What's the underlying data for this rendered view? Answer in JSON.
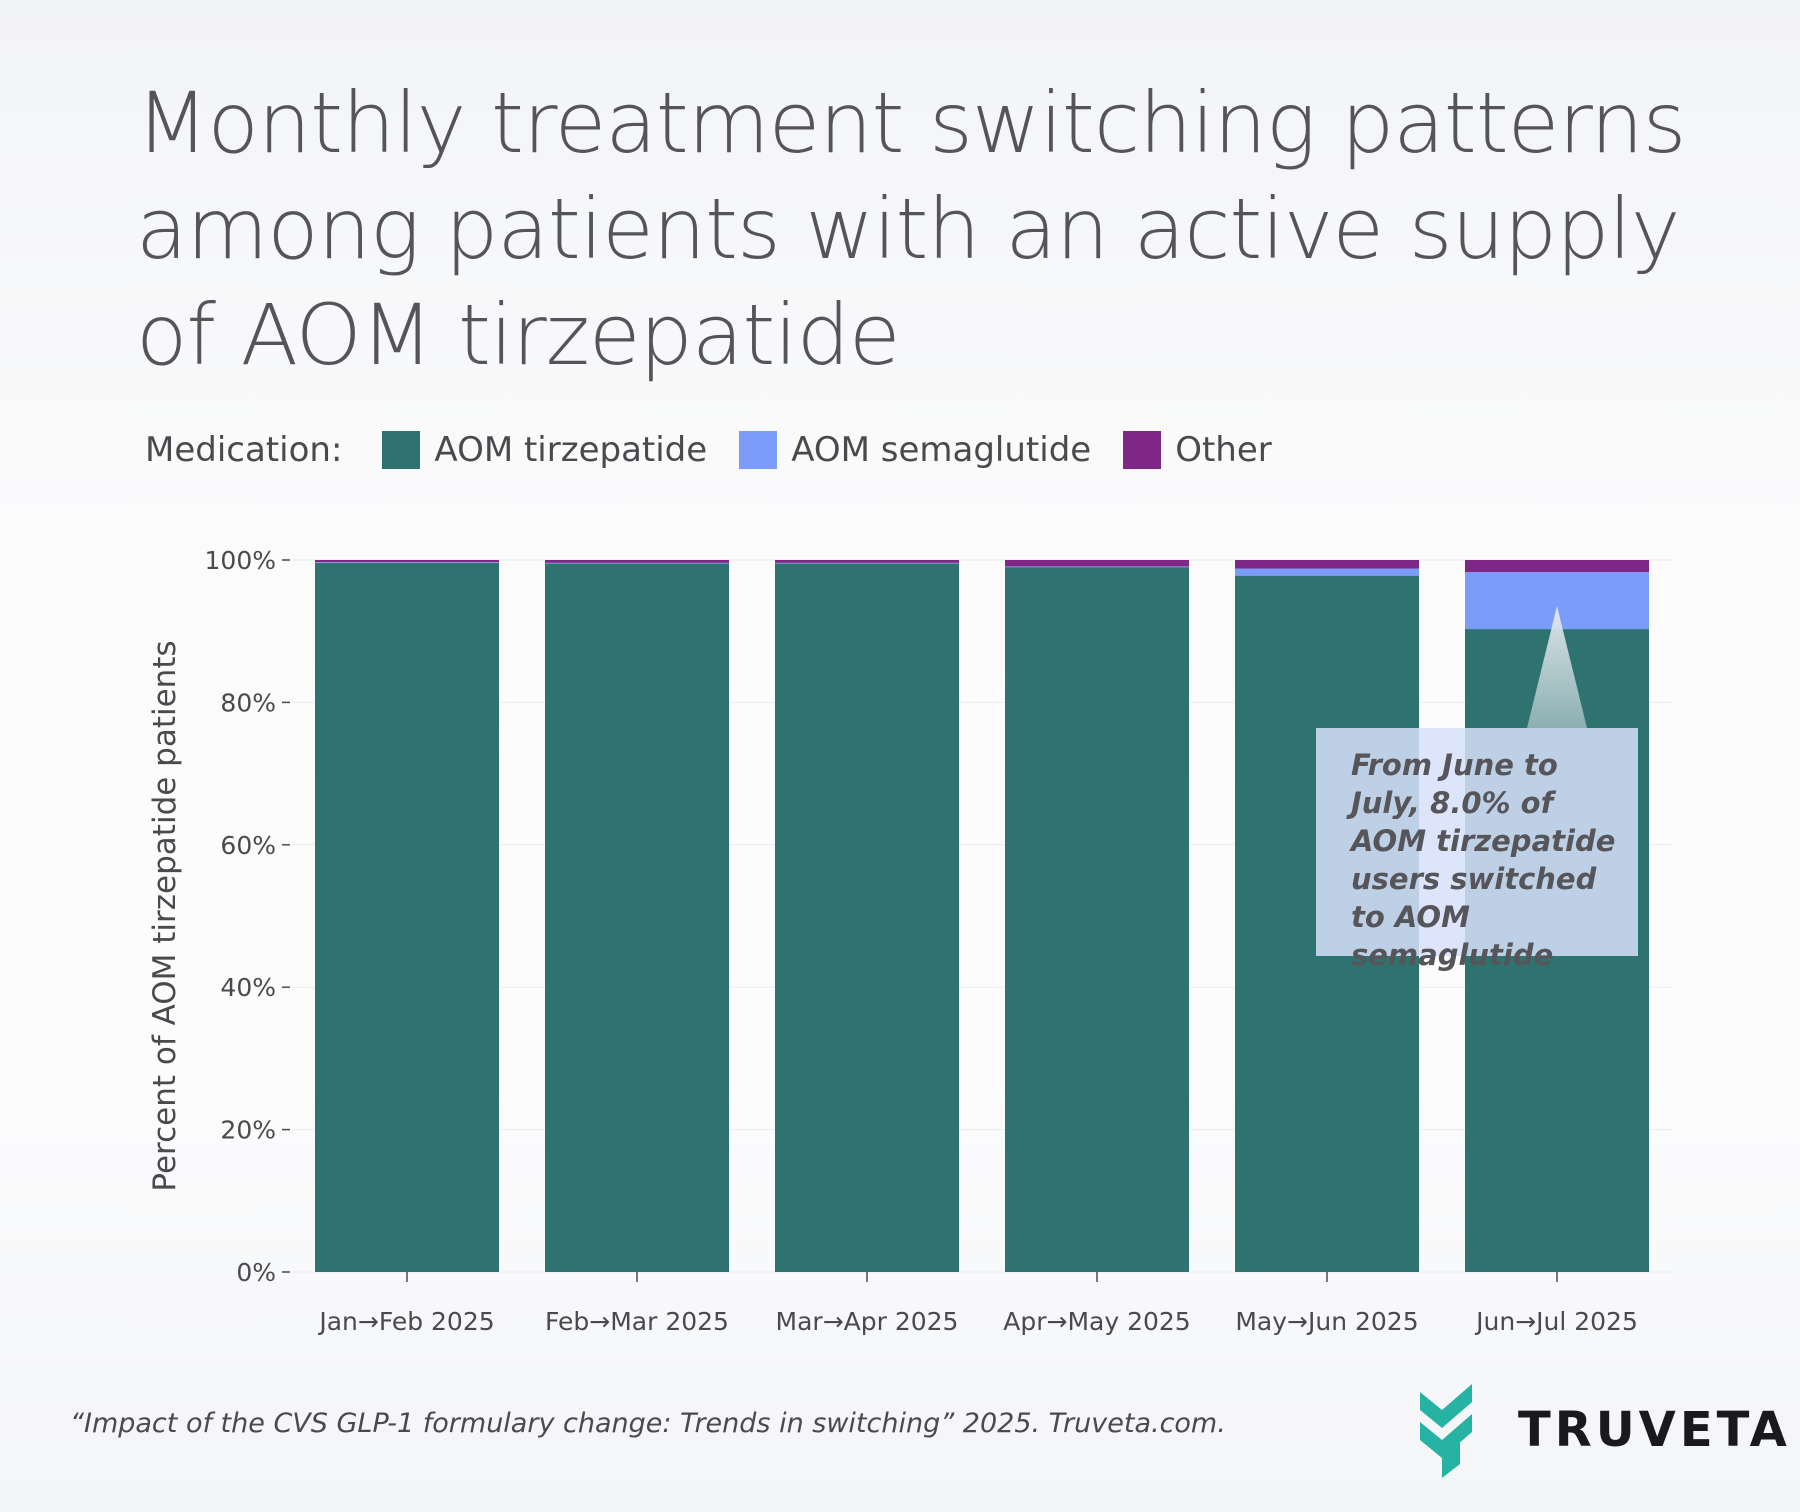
{
  "title": "Monthly treatment switching patterns among patients with an active supply of AOM tirzepatide",
  "legend": {
    "title": "Medication:",
    "items": [
      {
        "label": "AOM tirzepatide",
        "color": "#2e7370"
      },
      {
        "label": "AOM semaglutide",
        "color": "#7b9cf9"
      },
      {
        "label": "Other",
        "color": "#7e2786"
      }
    ]
  },
  "chart_data": {
    "type": "bar",
    "stacked": true,
    "categories": [
      "Jan→Feb 2025",
      "Feb→Mar 2025",
      "Mar→Apr 2025",
      "Apr→May 2025",
      "May→Jun 2025",
      "Jun→Jul 2025"
    ],
    "series": [
      {
        "name": "AOM tirzepatide",
        "color": "#2e7370",
        "values": [
          99.6,
          99.5,
          99.5,
          99.0,
          97.8,
          90.3
        ]
      },
      {
        "name": "AOM semaglutide",
        "color": "#7b9cf9",
        "values": [
          0.1,
          0.1,
          0.1,
          0.1,
          1.0,
          8.0
        ]
      },
      {
        "name": "Other",
        "color": "#7e2786",
        "values": [
          0.3,
          0.4,
          0.4,
          0.9,
          1.2,
          1.7
        ]
      }
    ],
    "ylabel": "Percent of AOM tirzepatide patients",
    "xlabel": "",
    "ylim": [
      0,
      100
    ],
    "yticks": [
      "0%",
      "20%",
      "40%",
      "60%",
      "80%",
      "100%"
    ],
    "grid": true,
    "annotation": "From June to July, 8.0% of AOM tirzepatide users switched to AOM semaglutide"
  },
  "source": "“Impact of the CVS GLP-1 formulary change: Trends in switching” 2025. Truveta.com.",
  "logo": {
    "name": "TRUVETA",
    "color": "#26b3a4"
  }
}
